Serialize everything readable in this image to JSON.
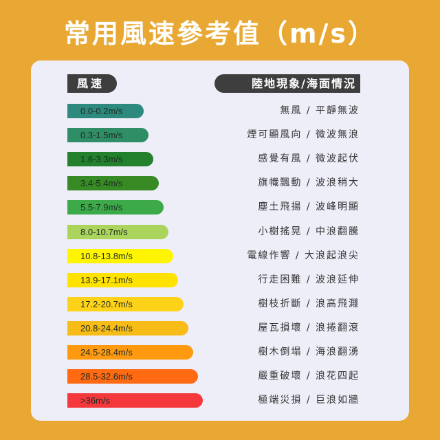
{
  "title": "常用風速參考值（m/s）",
  "headers": {
    "speed": "風速",
    "phenomena": "陸地現象/海面情況"
  },
  "rows": [
    {
      "speed": "0.0-0.2m/s",
      "desc": "無風 / 平靜無波",
      "color": "#2E8A7E"
    },
    {
      "speed": "0.3-1.5m/s",
      "desc": "煙可顯風向 / 微波無浪",
      "color": "#2F8E66"
    },
    {
      "speed": "1.6-3.3m/s",
      "desc": "感覺有風 / 微波起伏",
      "color": "#23812E"
    },
    {
      "speed": "3.4-5.4m/s",
      "desc": "旗幟飄動 / 波浪稍大",
      "color": "#388A25"
    },
    {
      "speed": "5.5-7.9m/s",
      "desc": "塵土飛揚 / 波峰明顯",
      "color": "#3DAA4A"
    },
    {
      "speed": "8.0-10.7m/s",
      "desc": "小樹搖晃 / 中浪翻騰",
      "color": "#AAD45C"
    },
    {
      "speed": "10.8-13.8m/s",
      "desc": "電線作響 / 大浪起浪尖",
      "color": "#FFF500"
    },
    {
      "speed": "13.9-17.1m/s",
      "desc": "行走困難 / 波浪延伸",
      "color": "#FFE200"
    },
    {
      "speed": "17.2-20.7m/s",
      "desc": "樹枝折斷 / 浪高飛濺",
      "color": "#FFD21A"
    },
    {
      "speed": "20.8-24.4m/s",
      "desc": "屋瓦損壞 / 浪捲翻滾",
      "color": "#F7BC17"
    },
    {
      "speed": "24.5-28.4m/s",
      "desc": "樹木倒塌 / 海浪翻湧",
      "color": "#FF9A10"
    },
    {
      "speed": "28.5-32.6m/s",
      "desc": "嚴重破壞 / 浪花四起",
      "color": "#FF6A12"
    },
    {
      "speed": ">36m/s",
      "desc": "極端災損 / 巨浪如牆",
      "color": "#F5383C"
    }
  ]
}
